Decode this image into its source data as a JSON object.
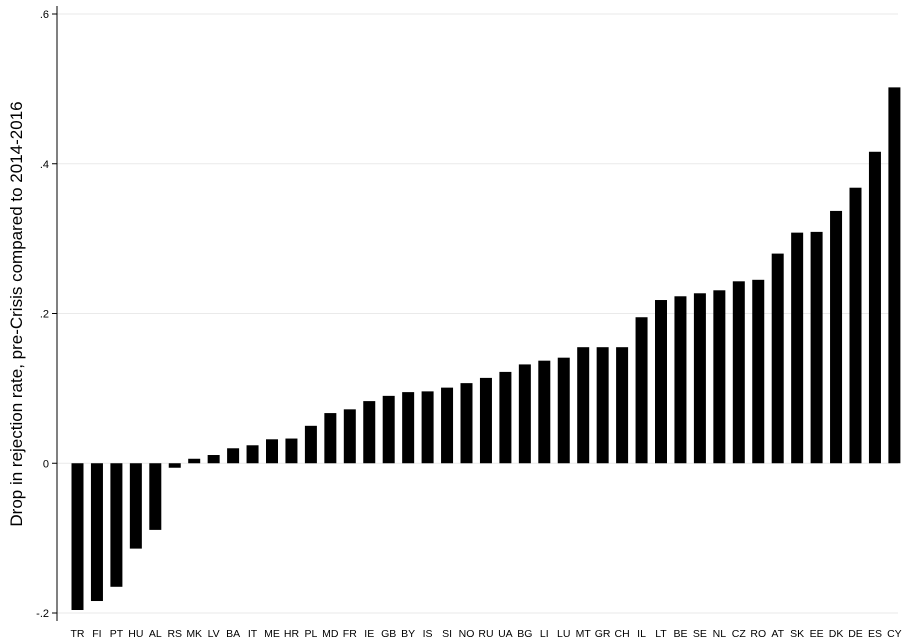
{
  "chart_data": {
    "type": "bar",
    "title": "",
    "xlabel": "",
    "ylabel": "Drop in rejection rate, pre-Crisis compared to 2014-2016",
    "ylim": [
      -0.2,
      0.6
    ],
    "yticks": [
      -0.2,
      0,
      0.2,
      0.4,
      0.6
    ],
    "ytick_labels": [
      "-.2",
      "0",
      ".2",
      ".4",
      ".6"
    ],
    "grid": "horizontal",
    "bar_color": "#000000",
    "categories": [
      "TR",
      "FI",
      "PT",
      "HU",
      "AL",
      "RS",
      "MK",
      "LV",
      "BA",
      "IT",
      "ME",
      "HR",
      "PL",
      "MD",
      "FR",
      "IE",
      "GB",
      "BY",
      "IS",
      "SI",
      "NO",
      "RU",
      "UA",
      "BG",
      "LI",
      "LU",
      "MT",
      "GR",
      "CH",
      "IL",
      "LT",
      "BE",
      "SE",
      "NL",
      "CZ",
      "RO",
      "AT",
      "SK",
      "EE",
      "DK",
      "DE",
      "ES",
      "CY"
    ],
    "values": [
      -0.196,
      -0.184,
      -0.165,
      -0.114,
      -0.089,
      -0.006,
      0.006,
      0.011,
      0.02,
      0.024,
      0.032,
      0.033,
      0.05,
      0.067,
      0.072,
      0.083,
      0.09,
      0.095,
      0.096,
      0.101,
      0.107,
      0.114,
      0.122,
      0.132,
      0.137,
      0.141,
      0.155,
      0.155,
      0.155,
      0.195,
      0.218,
      0.223,
      0.227,
      0.231,
      0.243,
      0.245,
      0.28,
      0.308,
      0.309,
      0.337,
      0.368,
      0.416,
      0.502
    ]
  }
}
